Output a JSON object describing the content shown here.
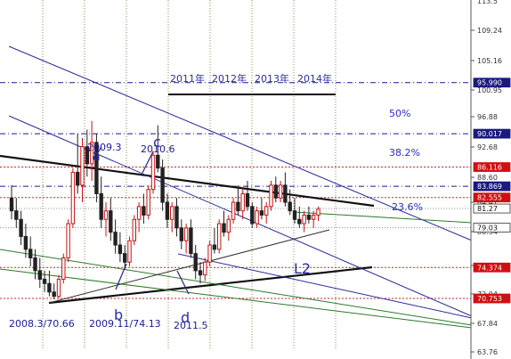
{
  "chart_data": {
    "type": "candlestick",
    "y_axis": {
      "ticks": [
        "109.24",
        "105.16",
        "100.95",
        "96.88",
        "92.68",
        "88.60",
        "84.41",
        "80.34",
        "76.12",
        "72.04",
        "67.84",
        "63.76"
      ],
      "top_partial": "113.5"
    },
    "price_flags": [
      {
        "label": "95.990",
        "value": 95.99,
        "color": "#1a1a80"
      },
      {
        "label": "90.017",
        "value": 90.017,
        "color": "#1a1a80"
      },
      {
        "label": "86.116",
        "value": 86.116,
        "color": "#d01010"
      },
      {
        "label": "83.869",
        "value": 83.869,
        "color": "#1a1a80"
      },
      {
        "label": "82.555",
        "value": 82.555,
        "color": "#d01010"
      },
      {
        "label": "81.27",
        "value": 81.27,
        "color": "#ffffff"
      },
      {
        "label": "79.03",
        "value": 79.03,
        "color": "#ffffff"
      },
      {
        "label": "74.374",
        "value": 74.374,
        "color": "#d01010"
      },
      {
        "label": "70.753",
        "value": 70.753,
        "color": "#d01010"
      }
    ],
    "fib_labels": [
      "50%",
      "38.2%",
      "23.6%"
    ],
    "years": [
      "2011年",
      "2012年",
      "2013年",
      "2014年"
    ],
    "point_labels": [
      "a",
      "b",
      "c",
      "d"
    ],
    "annotations": [
      "2009.3",
      "2010.6",
      "2008.3/70.66",
      "2009.11/74.13",
      "2011.5"
    ],
    "line_label": "L2",
    "candles": [
      {
        "o": 82.5,
        "h": 84.0,
        "l": 80.0,
        "c": 81.0
      },
      {
        "o": 81.0,
        "h": 82.5,
        "l": 79.0,
        "c": 80.0
      },
      {
        "o": 80.0,
        "h": 81.0,
        "l": 77.0,
        "c": 78.0
      },
      {
        "o": 78.0,
        "h": 79.5,
        "l": 75.5,
        "c": 76.5
      },
      {
        "o": 76.5,
        "h": 78.0,
        "l": 74.5,
        "c": 75.5
      },
      {
        "o": 75.5,
        "h": 76.5,
        "l": 73.0,
        "c": 74.0
      },
      {
        "o": 74.0,
        "h": 75.5,
        "l": 72.0,
        "c": 73.0
      },
      {
        "o": 73.0,
        "h": 74.0,
        "l": 71.5,
        "c": 72.5
      },
      {
        "o": 72.5,
        "h": 74.0,
        "l": 71.0,
        "c": 71.5
      },
      {
        "o": 71.5,
        "h": 72.5,
        "l": 70.66,
        "c": 71.0
      },
      {
        "o": 71.0,
        "h": 73.5,
        "l": 70.8,
        "c": 73.0
      },
      {
        "o": 73.0,
        "h": 76.0,
        "l": 72.5,
        "c": 75.5
      },
      {
        "o": 75.5,
        "h": 80.0,
        "l": 75.0,
        "c": 79.5
      },
      {
        "o": 79.5,
        "h": 86.0,
        "l": 79.0,
        "c": 85.5
      },
      {
        "o": 85.5,
        "h": 90.0,
        "l": 83.0,
        "c": 84.0
      },
      {
        "o": 84.0,
        "h": 89.5,
        "l": 82.0,
        "c": 88.5
      },
      {
        "o": 88.5,
        "h": 90.5,
        "l": 85.0,
        "c": 86.5
      },
      {
        "o": 86.5,
        "h": 91.5,
        "l": 84.5,
        "c": 89.0
      },
      {
        "o": 89.0,
        "h": 90.0,
        "l": 82.0,
        "c": 83.0
      },
      {
        "o": 83.0,
        "h": 85.0,
        "l": 79.0,
        "c": 80.0
      },
      {
        "o": 80.0,
        "h": 82.0,
        "l": 78.0,
        "c": 81.0
      },
      {
        "o": 81.0,
        "h": 82.5,
        "l": 77.5,
        "c": 78.5
      },
      {
        "o": 78.5,
        "h": 80.0,
        "l": 76.0,
        "c": 77.0
      },
      {
        "o": 77.0,
        "h": 78.5,
        "l": 75.0,
        "c": 76.0
      },
      {
        "o": 76.0,
        "h": 77.0,
        "l": 74.13,
        "c": 75.0
      },
      {
        "o": 75.0,
        "h": 78.0,
        "l": 74.5,
        "c": 77.5
      },
      {
        "o": 77.5,
        "h": 80.5,
        "l": 77.0,
        "c": 80.0
      },
      {
        "o": 80.0,
        "h": 82.0,
        "l": 78.5,
        "c": 81.5
      },
      {
        "o": 81.5,
        "h": 83.0,
        "l": 79.5,
        "c": 80.5
      },
      {
        "o": 80.5,
        "h": 84.0,
        "l": 80.0,
        "c": 83.5
      },
      {
        "o": 83.5,
        "h": 88.0,
        "l": 83.0,
        "c": 87.5
      },
      {
        "o": 87.5,
        "h": 91.0,
        "l": 85.5,
        "c": 86.0
      },
      {
        "o": 86.0,
        "h": 87.0,
        "l": 81.0,
        "c": 82.0
      },
      {
        "o": 82.0,
        "h": 83.0,
        "l": 79.0,
        "c": 80.0
      },
      {
        "o": 80.0,
        "h": 82.0,
        "l": 78.5,
        "c": 81.5
      },
      {
        "o": 81.5,
        "h": 82.5,
        "l": 78.0,
        "c": 79.0
      },
      {
        "o": 79.0,
        "h": 80.0,
        "l": 76.5,
        "c": 77.5
      },
      {
        "o": 77.5,
        "h": 79.5,
        "l": 76.0,
        "c": 79.0
      },
      {
        "o": 79.0,
        "h": 80.0,
        "l": 75.5,
        "c": 76.0
      },
      {
        "o": 76.0,
        "h": 77.0,
        "l": 73.0,
        "c": 74.0
      },
      {
        "o": 74.0,
        "h": 75.0,
        "l": 72.5,
        "c": 73.5
      },
      {
        "o": 73.5,
        "h": 75.5,
        "l": 72.8,
        "c": 75.0
      },
      {
        "o": 75.0,
        "h": 77.5,
        "l": 74.5,
        "c": 77.0
      },
      {
        "o": 77.0,
        "h": 79.0,
        "l": 76.0,
        "c": 76.5
      },
      {
        "o": 76.5,
        "h": 80.0,
        "l": 76.0,
        "c": 79.5
      },
      {
        "o": 79.5,
        "h": 81.0,
        "l": 78.0,
        "c": 78.5
      },
      {
        "o": 78.5,
        "h": 80.5,
        "l": 77.5,
        "c": 80.0
      },
      {
        "o": 80.0,
        "h": 82.5,
        "l": 79.5,
        "c": 82.0
      },
      {
        "o": 82.0,
        "h": 84.0,
        "l": 80.5,
        "c": 81.0
      },
      {
        "o": 81.0,
        "h": 83.5,
        "l": 80.0,
        "c": 83.0
      },
      {
        "o": 83.0,
        "h": 84.5,
        "l": 81.0,
        "c": 81.5
      },
      {
        "o": 81.5,
        "h": 82.0,
        "l": 79.0,
        "c": 79.5
      },
      {
        "o": 79.5,
        "h": 81.5,
        "l": 79.0,
        "c": 81.0
      },
      {
        "o": 81.0,
        "h": 82.5,
        "l": 80.0,
        "c": 80.5
      },
      {
        "o": 80.5,
        "h": 82.0,
        "l": 79.5,
        "c": 81.5
      },
      {
        "o": 81.5,
        "h": 84.5,
        "l": 81.0,
        "c": 84.0
      },
      {
        "o": 84.0,
        "h": 85.0,
        "l": 82.0,
        "c": 82.5
      },
      {
        "o": 82.5,
        "h": 84.5,
        "l": 82.0,
        "c": 84.0
      },
      {
        "o": 84.0,
        "h": 85.5,
        "l": 81.5,
        "c": 82.0
      },
      {
        "o": 82.0,
        "h": 83.5,
        "l": 80.5,
        "c": 81.0
      },
      {
        "o": 81.0,
        "h": 82.5,
        "l": 79.5,
        "c": 80.0
      },
      {
        "o": 80.0,
        "h": 81.5,
        "l": 79.0,
        "c": 79.5
      },
      {
        "o": 79.5,
        "h": 81.0,
        "l": 78.5,
        "c": 80.5
      },
      {
        "o": 80.5,
        "h": 81.5,
        "l": 79.5,
        "c": 80.0
      },
      {
        "o": 80.0,
        "h": 81.0,
        "l": 79.0,
        "c": 80.5
      },
      {
        "o": 80.5,
        "h": 81.5,
        "l": 79.8,
        "c": 81.2
      }
    ]
  }
}
